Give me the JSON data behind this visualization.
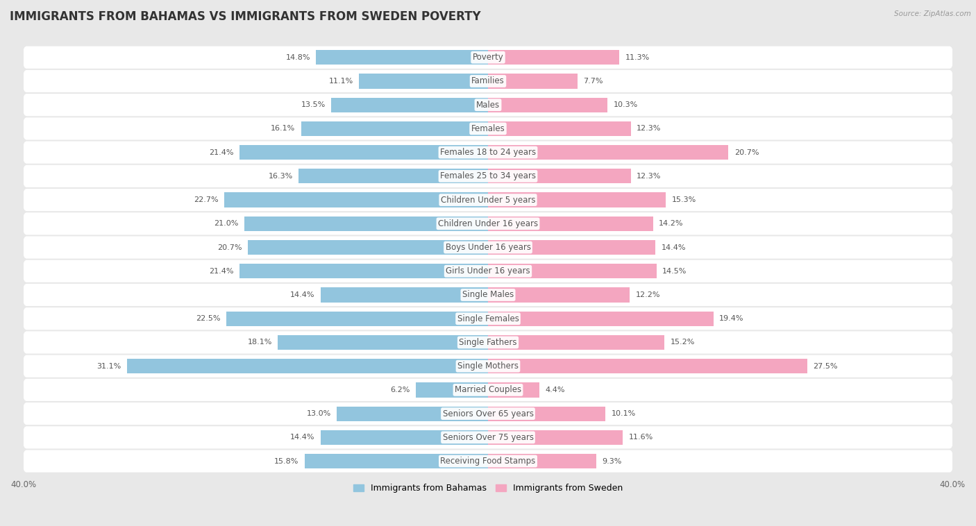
{
  "title": "IMMIGRANTS FROM BAHAMAS VS IMMIGRANTS FROM SWEDEN POVERTY",
  "source": "Source: ZipAtlas.com",
  "categories": [
    "Poverty",
    "Families",
    "Males",
    "Females",
    "Females 18 to 24 years",
    "Females 25 to 34 years",
    "Children Under 5 years",
    "Children Under 16 years",
    "Boys Under 16 years",
    "Girls Under 16 years",
    "Single Males",
    "Single Females",
    "Single Fathers",
    "Single Mothers",
    "Married Couples",
    "Seniors Over 65 years",
    "Seniors Over 75 years",
    "Receiving Food Stamps"
  ],
  "bahamas_values": [
    14.8,
    11.1,
    13.5,
    16.1,
    21.4,
    16.3,
    22.7,
    21.0,
    20.7,
    21.4,
    14.4,
    22.5,
    18.1,
    31.1,
    6.2,
    13.0,
    14.4,
    15.8
  ],
  "sweden_values": [
    11.3,
    7.7,
    10.3,
    12.3,
    20.7,
    12.3,
    15.3,
    14.2,
    14.4,
    14.5,
    12.2,
    19.4,
    15.2,
    27.5,
    4.4,
    10.1,
    11.6,
    9.3
  ],
  "bahamas_color": "#92c5de",
  "sweden_color": "#f4a6c0",
  "bahamas_label": "Immigrants from Bahamas",
  "sweden_label": "Immigrants from Sweden",
  "xlim": 40.0,
  "background_color": "#e8e8e8",
  "row_bg_color": "#ffffff",
  "title_fontsize": 12,
  "label_fontsize": 8.5,
  "value_fontsize": 8.0,
  "axis_label_fontsize": 8.5
}
